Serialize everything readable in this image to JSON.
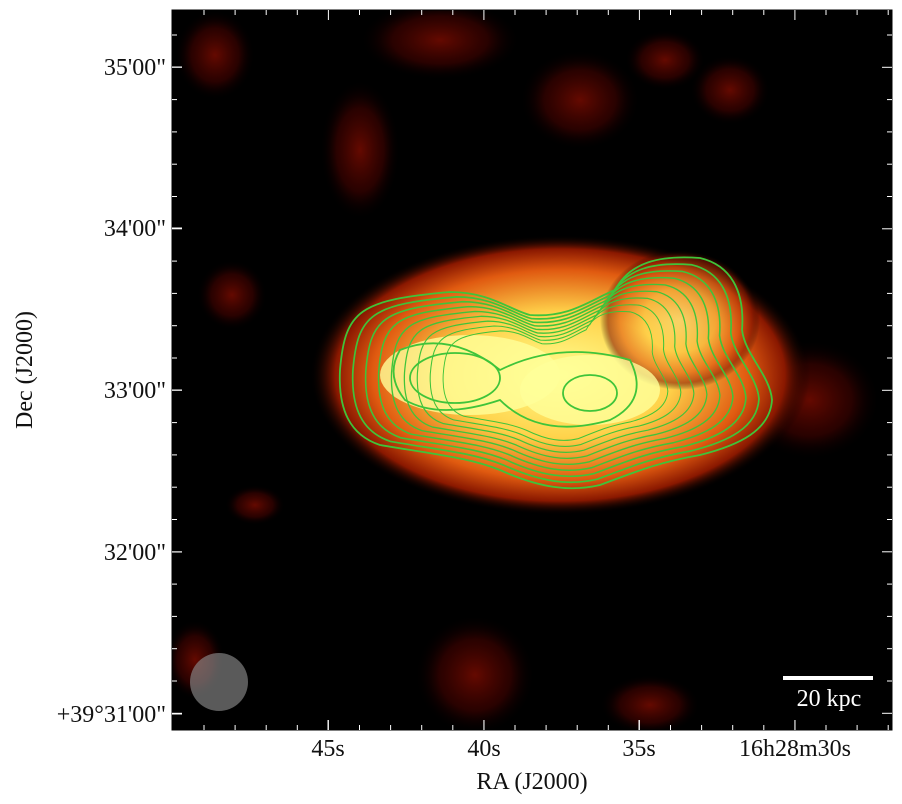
{
  "figure": {
    "x_label": "RA (J2000)",
    "y_label": "Dec (J2000)",
    "x_tick_labels": [
      "45s",
      "40s",
      "35s",
      "16h28m30s"
    ],
    "y_tick_labels": [
      "35'00\"",
      "34'00\"",
      "33'00\"",
      "32'00\"",
      "+39°31'00\""
    ],
    "scale_bar_label": "20 kpc"
  }
}
